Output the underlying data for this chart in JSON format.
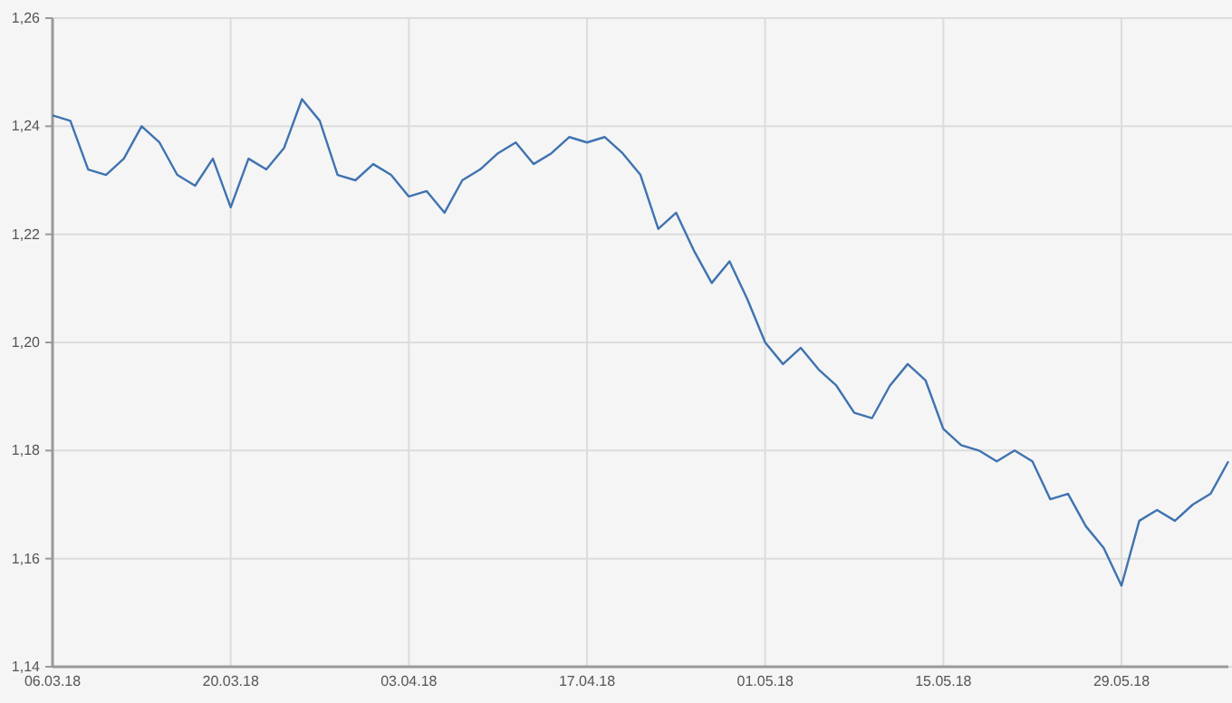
{
  "chart_data": {
    "type": "line",
    "categories": [
      "06.03.18",
      null,
      null,
      null,
      null,
      null,
      null,
      null,
      null,
      null,
      "20.03.18",
      null,
      null,
      null,
      null,
      null,
      null,
      null,
      null,
      null,
      "03.04.18",
      null,
      null,
      null,
      null,
      null,
      null,
      null,
      null,
      null,
      "17.04.18",
      null,
      null,
      null,
      null,
      null,
      null,
      null,
      null,
      null,
      "01.05.18",
      null,
      null,
      null,
      null,
      null,
      null,
      null,
      null,
      null,
      "15.05.18",
      null,
      null,
      null,
      null,
      null,
      null,
      null,
      null,
      null,
      "29.05.18",
      null,
      null,
      null,
      null,
      null,
      null
    ],
    "series": [
      {
        "color": "#3f73b0",
        "values": [
          1.242,
          1.241,
          1.232,
          1.231,
          1.234,
          1.24,
          1.237,
          1.231,
          1.229,
          1.234,
          1.225,
          1.234,
          1.232,
          1.236,
          1.245,
          1.241,
          1.231,
          1.23,
          1.233,
          1.231,
          1.227,
          1.228,
          1.224,
          1.23,
          1.232,
          1.235,
          1.237,
          1.233,
          1.235,
          1.238,
          1.237,
          1.238,
          1.235,
          1.231,
          1.221,
          1.224,
          1.217,
          1.211,
          1.215,
          1.208,
          1.2,
          1.196,
          1.199,
          1.195,
          1.192,
          1.187,
          1.186,
          1.192,
          1.196,
          1.193,
          1.184,
          1.181,
          1.18,
          1.178,
          1.18,
          1.178,
          1.171,
          1.172,
          1.166,
          1.162,
          1.155,
          1.167,
          1.169,
          1.167,
          1.17,
          1.172,
          1.178
        ]
      }
    ],
    "ylim": [
      1.14,
      1.26
    ],
    "yticks": [
      {
        "value": 1.14,
        "label": "1,14"
      },
      {
        "value": 1.16,
        "label": "1,16"
      },
      {
        "value": 1.18,
        "label": "1,18"
      },
      {
        "value": 1.2,
        "label": "1,20"
      },
      {
        "value": 1.22,
        "label": "1,22"
      },
      {
        "value": 1.24,
        "label": "1,24"
      },
      {
        "value": 1.26,
        "label": "1,26"
      }
    ],
    "grid": true,
    "marker": "none",
    "line_style": "solid"
  }
}
